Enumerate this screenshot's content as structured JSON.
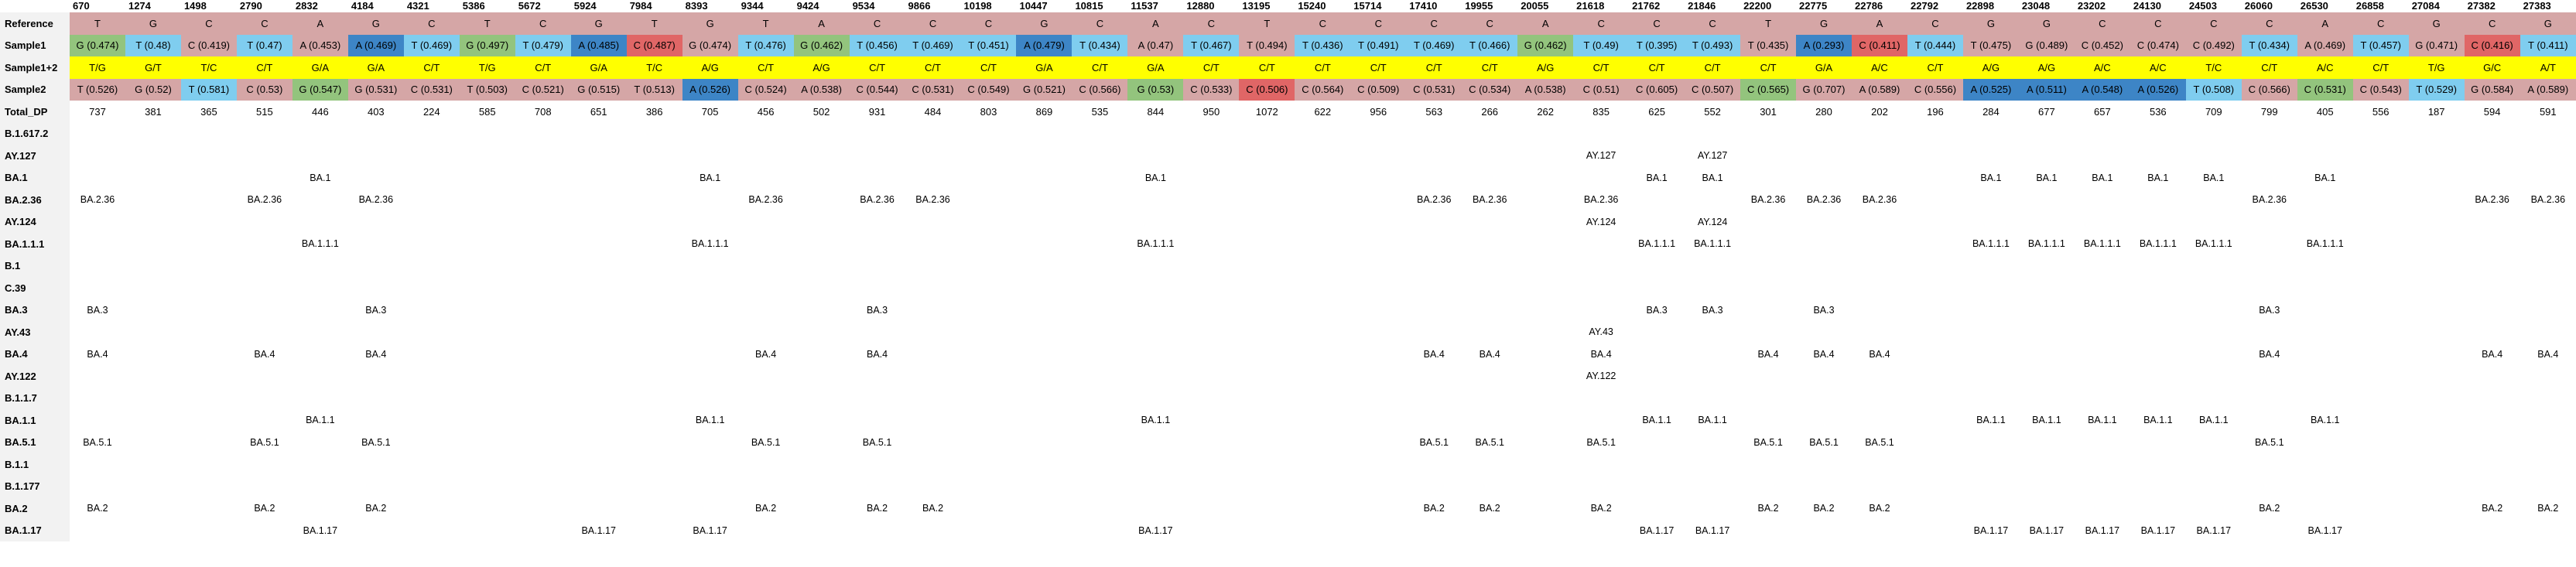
{
  "positions": [
    "670",
    "1274",
    "1498",
    "2790",
    "2832",
    "4184",
    "4321",
    "5386",
    "5672",
    "5924",
    "7984",
    "8393",
    "9344",
    "9424",
    "9534",
    "9866",
    "10198",
    "10447",
    "10815",
    "11537",
    "12880",
    "13195",
    "15240",
    "15714",
    "17410",
    "19955",
    "20055",
    "21618",
    "21762",
    "21846",
    "22200",
    "22775",
    "22786",
    "22792",
    "22898",
    "23048",
    "23202",
    "24130",
    "24503",
    "26060",
    "26530",
    "26858",
    "27084",
    "27382",
    "27383"
  ],
  "rows": [
    {
      "label": "Reference",
      "kind": "ref",
      "cells": [
        "T",
        "G",
        "C",
        "C",
        "A",
        "G",
        "C",
        "T",
        "C",
        "G",
        "T",
        "G",
        "T",
        "A",
        "C",
        "C",
        "C",
        "G",
        "C",
        "A",
        "C",
        "T",
        "C",
        "C",
        "C",
        "C",
        "A",
        "C",
        "C",
        "C",
        "T",
        "G",
        "A",
        "C",
        "G",
        "G",
        "C",
        "C",
        "C",
        "C",
        "A",
        "C",
        "G",
        "C",
        "G"
      ]
    },
    {
      "label": "Sample1",
      "kind": "sample",
      "cells": [
        "G (0.474)",
        "T (0.48)",
        "C (0.419)",
        "T (0.47)",
        "A (0.453)",
        "A (0.469)",
        "T (0.469)",
        "G (0.497)",
        "T (0.479)",
        "A (0.485)",
        "C (0.487)",
        "G (0.474)",
        "T (0.476)",
        "G (0.462)",
        "T (0.456)",
        "T (0.469)",
        "T (0.451)",
        "A (0.479)",
        "T (0.434)",
        "A (0.47)",
        "T (0.467)",
        "T (0.494)",
        "T (0.436)",
        "T (0.491)",
        "T (0.469)",
        "T (0.466)",
        "G (0.462)",
        "T (0.49)",
        "T (0.395)",
        "T (0.493)",
        "T (0.435)",
        "A (0.293)",
        "C (0.411)",
        "T (0.444)",
        "T (0.475)",
        "G (0.489)",
        "C (0.452)",
        "C (0.474)",
        "C (0.492)",
        "T (0.434)",
        "A (0.469)",
        "T (0.457)",
        "G (0.471)",
        "C (0.416)",
        "T (0.411)"
      ],
      "colors": [
        "gr",
        "lb",
        "ros",
        "lb",
        "ros",
        "db",
        "lb",
        "gr",
        "lb",
        "db",
        "rd",
        "ros",
        "lb",
        "gr",
        "lb",
        "lb",
        "lb",
        "db",
        "lb",
        "ros",
        "lb",
        "ros",
        "lb",
        "lb",
        "lb",
        "lb",
        "gr",
        "lb",
        "lb",
        "lb",
        "ros",
        "db",
        "rd",
        "lb",
        "ros",
        "ros",
        "ros",
        "ros",
        "ros",
        "lb",
        "ros",
        "lb",
        "ros",
        "rd",
        "lb"
      ]
    },
    {
      "label": "Sample1+2",
      "kind": "yel",
      "cells": [
        "T/G",
        "G/T",
        "T/C",
        "C/T",
        "G/A",
        "G/A",
        "C/T",
        "T/G",
        "C/T",
        "G/A",
        "T/C",
        "A/G",
        "C/T",
        "A/G",
        "C/T",
        "C/T",
        "C/T",
        "G/A",
        "C/T",
        "G/A",
        "C/T",
        "C/T",
        "C/T",
        "C/T",
        "C/T",
        "C/T",
        "A/G",
        "C/T",
        "C/T",
        "C/T",
        "C/T",
        "G/A",
        "A/C",
        "C/T",
        "A/G",
        "A/G",
        "A/C",
        "A/C",
        "T/C",
        "C/T",
        "A/C",
        "C/T",
        "T/G",
        "G/C",
        "A/T"
      ]
    },
    {
      "label": "Sample2",
      "kind": "sample",
      "cells": [
        "T (0.526)",
        "G (0.52)",
        "T (0.581)",
        "C (0.53)",
        "G (0.547)",
        "G (0.531)",
        "C (0.531)",
        "T (0.503)",
        "C (0.521)",
        "G (0.515)",
        "T (0.513)",
        "A (0.526)",
        "C (0.524)",
        "A (0.538)",
        "C (0.544)",
        "C (0.531)",
        "C (0.549)",
        "G (0.521)",
        "C (0.566)",
        "G (0.53)",
        "C (0.533)",
        "C (0.506)",
        "C (0.564)",
        "C (0.509)",
        "C (0.531)",
        "C (0.534)",
        "A (0.538)",
        "C (0.51)",
        "C (0.605)",
        "C (0.507)",
        "C (0.565)",
        "G (0.707)",
        "A (0.589)",
        "C (0.556)",
        "A (0.525)",
        "A (0.511)",
        "A (0.548)",
        "A (0.526)",
        "T (0.508)",
        "C (0.566)",
        "C (0.531)",
        "C (0.543)",
        "T (0.529)",
        "G (0.584)",
        "A (0.589)"
      ],
      "colors": [
        "ros",
        "ros",
        "lb",
        "ros",
        "gr",
        "ros",
        "ros",
        "ros",
        "ros",
        "ros",
        "ros",
        "db",
        "ros",
        "ros",
        "ros",
        "ros",
        "ros",
        "ros",
        "ros",
        "gr",
        "ros",
        "rd",
        "ros",
        "ros",
        "ros",
        "ros",
        "ros",
        "ros",
        "ros",
        "ros",
        "gr",
        "ros",
        "ros",
        "ros",
        "db",
        "db",
        "db",
        "db",
        "lb",
        "ros",
        "gr",
        "ros",
        "lb",
        "ros",
        "ros"
      ]
    },
    {
      "label": "Total_DP",
      "kind": "plain",
      "cells": [
        "737",
        "381",
        "365",
        "515",
        "446",
        "403",
        "224",
        "585",
        "708",
        "651",
        "386",
        "705",
        "456",
        "502",
        "931",
        "484",
        "803",
        "869",
        "535",
        "844",
        "950",
        "1072",
        "622",
        "956",
        "563",
        "266",
        "262",
        "835",
        "625",
        "552",
        "301",
        "280",
        "202",
        "196",
        "284",
        "677",
        "657",
        "536",
        "709",
        "799",
        "405",
        "556",
        "187",
        "594",
        "591"
      ]
    },
    {
      "label": "B.1.617.2",
      "kind": "lin",
      "cells": {}
    },
    {
      "label": "AY.127",
      "kind": "lin",
      "cells": {
        "27": "AY.127",
        "29": "AY.127"
      }
    },
    {
      "label": "BA.1",
      "kind": "lin",
      "cells": {
        "4": "BA.1",
        "11": "BA.1",
        "19": "BA.1",
        "28": "BA.1",
        "29": "BA.1",
        "34": "BA.1",
        "35": "BA.1",
        "36": "BA.1",
        "37": "BA.1",
        "38": "BA.1",
        "40": "BA.1"
      }
    },
    {
      "label": "BA.2.36",
      "kind": "lin",
      "cells": {
        "0": "BA.2.36",
        "3": "BA.2.36",
        "5": "BA.2.36",
        "12": "BA.2.36",
        "14": "BA.2.36",
        "15": "BA.2.36",
        "24": "BA.2.36",
        "25": "BA.2.36",
        "27": "BA.2.36",
        "30": "BA.2.36",
        "31": "BA.2.36",
        "32": "BA.2.36",
        "39": "BA.2.36",
        "43": "BA.2.36",
        "44": "BA.2.36"
      }
    },
    {
      "label": "AY.124",
      "kind": "lin",
      "cells": {
        "27": "AY.124",
        "29": "AY.124"
      }
    },
    {
      "label": "BA.1.1.1",
      "kind": "lin",
      "cells": {
        "4": "BA.1.1.1",
        "11": "BA.1.1.1",
        "19": "BA.1.1.1",
        "28": "BA.1.1.1",
        "29": "BA.1.1.1",
        "34": "BA.1.1.1",
        "35": "BA.1.1.1",
        "36": "BA.1.1.1",
        "37": "BA.1.1.1",
        "38": "BA.1.1.1",
        "40": "BA.1.1.1"
      }
    },
    {
      "label": "B.1",
      "kind": "lin",
      "cells": {}
    },
    {
      "label": "C.39",
      "kind": "lin",
      "cells": {}
    },
    {
      "label": "BA.3",
      "kind": "lin",
      "cells": {
        "0": "BA.3",
        "5": "BA.3",
        "14": "BA.3",
        "28": "BA.3",
        "29": "BA.3",
        "31": "BA.3",
        "39": "BA.3"
      }
    },
    {
      "label": "AY.43",
      "kind": "lin",
      "cells": {
        "27": "AY.43"
      }
    },
    {
      "label": "BA.4",
      "kind": "lin",
      "cells": {
        "0": "BA.4",
        "3": "BA.4",
        "5": "BA.4",
        "12": "BA.4",
        "14": "BA.4",
        "24": "BA.4",
        "25": "BA.4",
        "27": "BA.4",
        "30": "BA.4",
        "31": "BA.4",
        "32": "BA.4",
        "39": "BA.4",
        "43": "BA.4",
        "44": "BA.4"
      }
    },
    {
      "label": "AY.122",
      "kind": "lin",
      "cells": {
        "27": "AY.122"
      }
    },
    {
      "label": "B.1.1.7",
      "kind": "lin",
      "cells": {}
    },
    {
      "label": "BA.1.1",
      "kind": "lin",
      "cells": {
        "4": "BA.1.1",
        "11": "BA.1.1",
        "19": "BA.1.1",
        "28": "BA.1.1",
        "29": "BA.1.1",
        "34": "BA.1.1",
        "35": "BA.1.1",
        "36": "BA.1.1",
        "37": "BA.1.1",
        "38": "BA.1.1",
        "40": "BA.1.1"
      }
    },
    {
      "label": "BA.5.1",
      "kind": "lin",
      "cells": {
        "0": "BA.5.1",
        "3": "BA.5.1",
        "5": "BA.5.1",
        "12": "BA.5.1",
        "14": "BA.5.1",
        "24": "BA.5.1",
        "25": "BA.5.1",
        "27": "BA.5.1",
        "30": "BA.5.1",
        "31": "BA.5.1",
        "32": "BA.5.1",
        "39": "BA.5.1"
      }
    },
    {
      "label": "B.1.1",
      "kind": "lin",
      "cells": {}
    },
    {
      "label": "B.1.177",
      "kind": "lin",
      "cells": {}
    },
    {
      "label": "BA.2",
      "kind": "lin",
      "cells": {
        "0": "BA.2",
        "3": "BA.2",
        "5": "BA.2",
        "12": "BA.2",
        "14": "BA.2",
        "15": "BA.2",
        "24": "BA.2",
        "25": "BA.2",
        "27": "BA.2",
        "30": "BA.2",
        "31": "BA.2",
        "32": "BA.2",
        "39": "BA.2",
        "43": "BA.2",
        "44": "BA.2"
      }
    },
    {
      "label": "BA.1.17",
      "kind": "lin",
      "cells": {
        "4": "BA.1.17",
        "9": "BA.1.17",
        "11": "BA.1.17",
        "19": "BA.1.17",
        "28": "BA.1.17",
        "29": "BA.1.17",
        "34": "BA.1.17",
        "35": "BA.1.17",
        "36": "BA.1.17",
        "37": "BA.1.17",
        "38": "BA.1.17",
        "40": "BA.1.17"
      }
    }
  ]
}
